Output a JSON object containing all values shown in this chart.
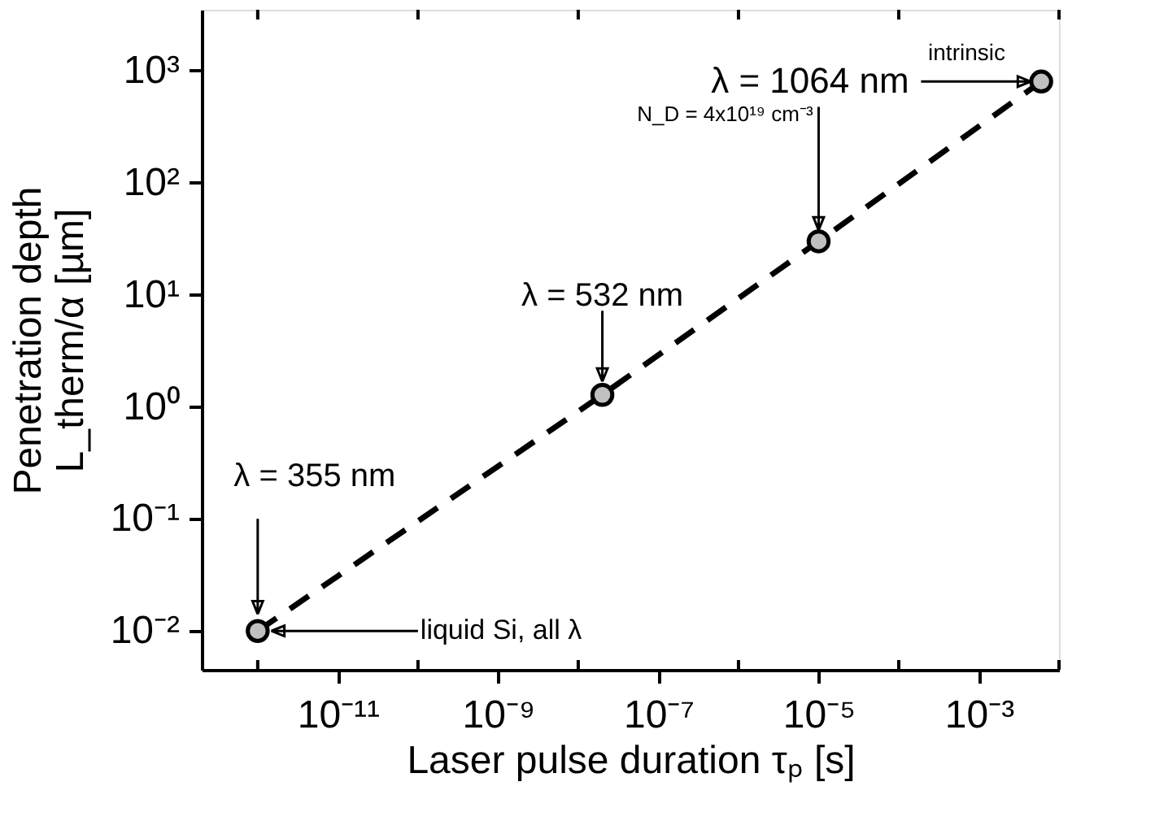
{
  "chart_data": {
    "type": "scatter",
    "xlabel": "Laser pulse duration τₚ [s]",
    "ylabel": "Penetration depth\nL_therm/α [µm]",
    "log": "xy",
    "xlim": [
      2e-13,
      0.01
    ],
    "ylim": [
      0.0045,
      3500
    ],
    "xticks": [
      {
        "value": 1e-12,
        "label": null
      },
      {
        "value": 1e-11,
        "label": "10⁻¹¹"
      },
      {
        "value": 1e-10,
        "label": null
      },
      {
        "value": 1e-09,
        "label": "10⁻⁹"
      },
      {
        "value": 1e-08,
        "label": null
      },
      {
        "value": 1e-07,
        "label": "10⁻⁷"
      },
      {
        "value": 1e-06,
        "label": null
      },
      {
        "value": 1e-05,
        "label": "10⁻⁵"
      },
      {
        "value": 0.0001,
        "label": null
      },
      {
        "value": 0.001,
        "label": "10⁻³"
      },
      {
        "value": 0.01,
        "label": null
      }
    ],
    "yticks": [
      {
        "value": 0.01,
        "label": "10⁻²"
      },
      {
        "value": 0.1,
        "label": "10⁻¹"
      },
      {
        "value": 1,
        "label": "10⁰"
      },
      {
        "value": 10,
        "label": "10¹"
      },
      {
        "value": 100,
        "label": "10²"
      },
      {
        "value": 1000,
        "label": "10³"
      }
    ],
    "grid": false,
    "series": [
      {
        "type": "line",
        "color": "#000000",
        "line_style": "dashed",
        "marker": "none",
        "x": [
          1e-12,
          2e-08,
          1e-05,
          0.006
        ],
        "values": [
          0.01,
          1.28,
          30,
          800
        ]
      },
      {
        "color": "#c0c0c0",
        "marker": "circle",
        "x": [
          1e-12,
          2e-08,
          1e-05,
          0.006
        ],
        "values": [
          0.01,
          1.28,
          30,
          800
        ]
      }
    ],
    "annotations": [
      "λ = 355 nm",
      {
        "text": "liquid Si, all λ",
        "x": 1e-12,
        "y": 0.01
      },
      {
        "text": "λ = 532 nm",
        "x": 2e-08,
        "y": 1.28
      },
      {
        "text": "N_D = 4x10¹⁹ cm⁻³",
        "x": 1e-05,
        "y": 30
      },
      "λ = 1064 nm",
      {
        "text": "intrinsic",
        "x": 0.006,
        "y": 800
      }
    ]
  }
}
